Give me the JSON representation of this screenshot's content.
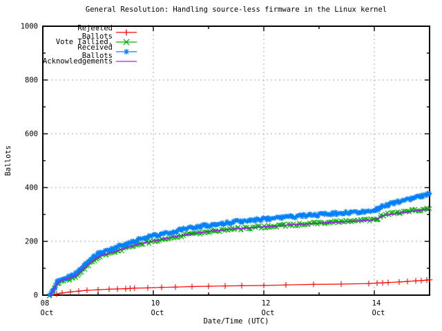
{
  "title": "General Resolution: Handling source-less firmware in the Linux kernel",
  "colors": {
    "background": "#ffffff",
    "border": "#000000",
    "grid": "#a9a9a9",
    "rejected": "#ff0000",
    "tallied": "#00b400",
    "received": "#0080ff",
    "acknowledgements": "#a020f0"
  },
  "chart_data": {
    "type": "line",
    "title": "General Resolution: Handling source-less firmware in the Linux kernel",
    "xlabel": "Date/Time (UTC)",
    "ylabel": "Ballots",
    "ylim": [
      0,
      1000
    ],
    "xlim_day_of_oct": [
      8,
      15
    ],
    "grid": true,
    "legend_position": "top-left",
    "y_major_ticks": [
      0,
      200,
      400,
      600,
      800,
      1000
    ],
    "y_minor_ticks": [
      100,
      300,
      500,
      700,
      900
    ],
    "x_major_ticks": [
      {
        "day": 8,
        "label": "08",
        "sublabel": "Oct"
      },
      {
        "day": 10,
        "label": "10",
        "sublabel": "Oct"
      },
      {
        "day": 12,
        "label": "12",
        "sublabel": "Oct"
      },
      {
        "day": 14,
        "label": "14",
        "sublabel": "Oct"
      }
    ],
    "x_minor_ticks": [
      9,
      11,
      13,
      15
    ],
    "series": [
      {
        "name": "Rejected Ballots",
        "color": "#ff0000",
        "marker": "plus",
        "dense": false,
        "x": [
          8.15,
          8.25,
          8.35,
          8.5,
          8.65,
          8.8,
          9.0,
          9.2,
          9.35,
          9.5,
          9.58,
          9.66,
          9.9,
          10.15,
          10.4,
          10.7,
          11.0,
          11.3,
          11.6,
          12.0,
          12.4,
          12.9,
          13.4,
          13.9,
          14.05,
          14.15,
          14.25,
          14.45,
          14.6,
          14.75,
          14.85,
          14.95,
          15.0
        ],
        "values": [
          0,
          4,
          8,
          12,
          15,
          18,
          20,
          22,
          23,
          24,
          25,
          26,
          27,
          29,
          30,
          32,
          33,
          34,
          35,
          36,
          38,
          40,
          41,
          43,
          45,
          46,
          47,
          49,
          51,
          53,
          54,
          56,
          57
        ]
      },
      {
        "name": "Vote Tallied,",
        "color": "#00b400",
        "marker": "cross",
        "dense": true,
        "x": [
          8.13,
          8.17,
          8.22,
          8.28,
          8.33,
          8.4,
          8.5,
          8.6,
          8.7,
          8.8,
          8.9,
          9.0,
          9.1,
          9.25,
          9.4,
          9.55,
          9.7,
          9.85,
          10.0,
          10.2,
          10.4,
          10.6,
          10.8,
          11.0,
          11.2,
          11.4,
          11.6,
          11.8,
          12.0,
          12.2,
          12.4,
          12.6,
          12.8,
          13.0,
          13.2,
          13.4,
          13.6,
          13.8,
          13.95,
          14.05,
          14.15,
          14.3,
          14.5,
          14.7,
          14.85,
          15.0
        ],
        "values": [
          0,
          10,
          28,
          44,
          52,
          56,
          61,
          70,
          88,
          108,
          126,
          140,
          148,
          157,
          167,
          177,
          186,
          194,
          200,
          209,
          217,
          224,
          230,
          236,
          240,
          244,
          248,
          251,
          254,
          257,
          260,
          263,
          266,
          268,
          271,
          273,
          276,
          278,
          280,
          284,
          297,
          302,
          308,
          314,
          318,
          322
        ]
      },
      {
        "name": "Received Ballots",
        "color": "#0080ff",
        "marker": "asterisk",
        "dense": true,
        "x": [
          8.13,
          8.17,
          8.22,
          8.28,
          8.33,
          8.4,
          8.5,
          8.6,
          8.7,
          8.8,
          8.9,
          9.0,
          9.1,
          9.25,
          9.4,
          9.55,
          9.7,
          9.85,
          10.0,
          10.2,
          10.4,
          10.6,
          10.8,
          11.0,
          11.2,
          11.4,
          11.6,
          11.8,
          12.0,
          12.2,
          12.4,
          12.6,
          12.8,
          13.0,
          13.2,
          13.4,
          13.6,
          13.8,
          13.95,
          14.05,
          14.15,
          14.3,
          14.5,
          14.7,
          14.85,
          15.0
        ],
        "values": [
          0,
          15,
          35,
          52,
          60,
          64,
          70,
          80,
          100,
          122,
          140,
          155,
          163,
          172,
          182,
          193,
          204,
          213,
          220,
          230,
          239,
          247,
          254,
          261,
          266,
          271,
          275,
          279,
          283,
          287,
          290,
          293,
          296,
          299,
          302,
          305,
          308,
          311,
          313,
          318,
          332,
          340,
          350,
          360,
          368,
          378
        ]
      },
      {
        "name": "Acknowledgements",
        "color": "#a020f0",
        "marker": "none",
        "dense": false,
        "x": [
          8.13,
          8.17,
          8.22,
          8.28,
          8.33,
          8.4,
          8.5,
          8.6,
          8.7,
          8.8,
          8.9,
          9.0,
          9.1,
          9.25,
          9.4,
          9.55,
          9.7,
          9.85,
          10.0,
          10.2,
          10.4,
          10.6,
          10.8,
          11.0,
          11.2,
          11.4,
          11.6,
          11.8,
          12.0,
          12.2,
          12.4,
          12.6,
          12.8,
          13.0,
          13.2,
          13.4,
          13.6,
          13.8,
          13.95,
          14.05,
          14.15,
          14.3,
          14.5,
          14.7,
          14.85,
          15.0
        ],
        "values": [
          0,
          12,
          31,
          47,
          55,
          59,
          64,
          73,
          91,
          111,
          128,
          142,
          150,
          159,
          169,
          179,
          188,
          195,
          201,
          210,
          218,
          225,
          231,
          237,
          241,
          245,
          248,
          251,
          254,
          257,
          260,
          263,
          265,
          267,
          270,
          272,
          275,
          277,
          279,
          283,
          295,
          300,
          306,
          312,
          316,
          320
        ]
      }
    ]
  }
}
